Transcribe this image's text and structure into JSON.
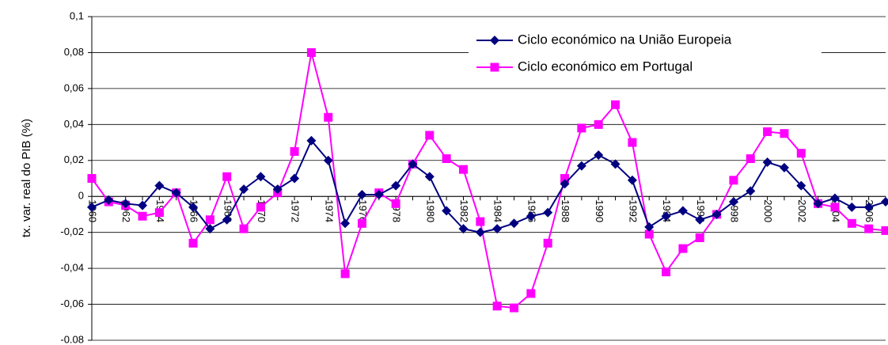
{
  "chart_data": {
    "type": "line",
    "y_label": "tx. var. real do PIB (%)",
    "categories": [
      "1960",
      null,
      "1962",
      null,
      "1964",
      null,
      "1966",
      null,
      "1968",
      null,
      "1970",
      null,
      "1972",
      null,
      "1974",
      null,
      "1976",
      null,
      "1978",
      null,
      "1980",
      null,
      "1982",
      null,
      "1984",
      null,
      "1986",
      null,
      "1988",
      null,
      "1990",
      null,
      "1992",
      null,
      "1994",
      null,
      "1996",
      null,
      "1998",
      null,
      "2000",
      null,
      "2002",
      null,
      "2004",
      null,
      "2006",
      null
    ],
    "series": [
      {
        "name": "Ciclo económico na União Europeia",
        "color": "#000080",
        "marker": "diamond",
        "values": [
          -0.006,
          -0.002,
          -0.004,
          -0.005,
          0.006,
          0.002,
          -0.006,
          -0.018,
          -0.013,
          0.004,
          0.011,
          0.004,
          0.01,
          0.031,
          0.02,
          -0.015,
          0.001,
          0.001,
          0.006,
          0.018,
          0.011,
          -0.008,
          -0.018,
          -0.02,
          -0.018,
          -0.015,
          -0.011,
          -0.009,
          0.007,
          0.017,
          0.023,
          0.018,
          0.009,
          -0.017,
          -0.011,
          -0.008,
          -0.013,
          -0.01,
          -0.003,
          0.003,
          0.019,
          0.016,
          0.006,
          -0.004,
          -0.001,
          -0.006,
          -0.006,
          -0.003
        ]
      },
      {
        "name": "Ciclo económico em Portugal",
        "color": "#FF00FF",
        "marker": "square",
        "values": [
          0.01,
          -0.003,
          -0.005,
          -0.011,
          -0.009,
          0.002,
          -0.026,
          -0.013,
          0.011,
          -0.018,
          -0.006,
          0.002,
          0.025,
          0.08,
          0.044,
          -0.043,
          -0.015,
          0.002,
          -0.004,
          0.018,
          0.034,
          0.021,
          0.015,
          -0.014,
          -0.061,
          -0.062,
          -0.054,
          -0.026,
          0.01,
          0.038,
          0.04,
          0.051,
          0.03,
          -0.021,
          -0.042,
          -0.029,
          -0.023,
          -0.01,
          0.009,
          0.021,
          0.036,
          0.035,
          0.024,
          -0.004,
          -0.006,
          -0.015,
          -0.018,
          -0.019
        ]
      }
    ],
    "ylim": [
      -0.08,
      0.1
    ],
    "yticks": [
      {
        "value": -0.08,
        "label": "-0.08"
      },
      {
        "value": -0.06,
        "label": "-0,06"
      },
      {
        "value": -0.04,
        "label": "-0,04"
      },
      {
        "value": -0.02,
        "label": "-0,02"
      },
      0,
      {
        "value": 0.02,
        "label": "0,02"
      },
      {
        "value": 0.04,
        "label": "0,04"
      },
      {
        "value": 0.06,
        "label": "0,06"
      },
      {
        "value": 0.08,
        "label": "0,08"
      },
      {
        "value": 0.1,
        "label": "0,1"
      }
    ],
    "grid": true,
    "legend": "top-right"
  }
}
